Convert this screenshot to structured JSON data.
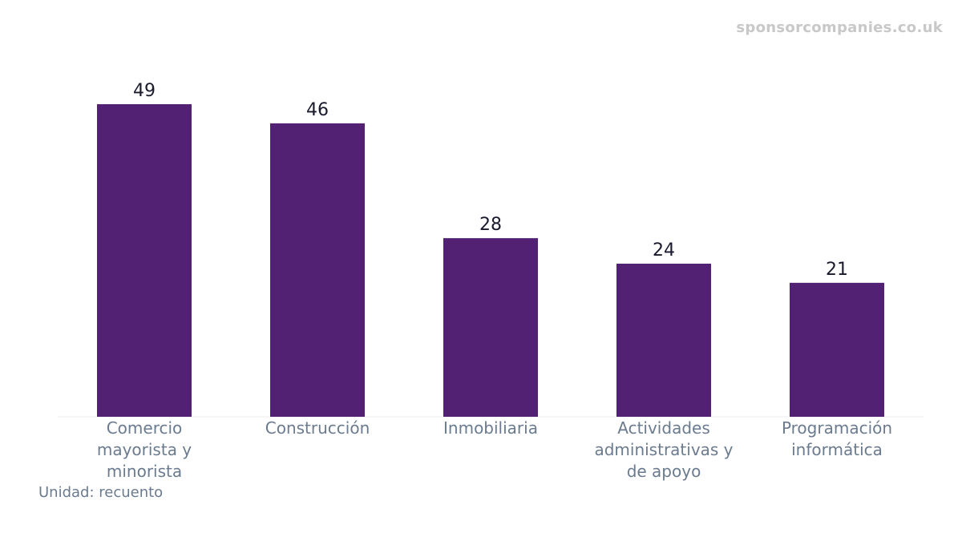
{
  "watermark": "sponsorcompanies.co.uk",
  "unit_note": "Unidad: recuento",
  "colors": {
    "bar": "#522173",
    "axis": "#eeeeee"
  },
  "chart_data": {
    "type": "bar",
    "categories": [
      [
        "Comercio",
        "mayorista y",
        "minorista"
      ],
      [
        "Construcción"
      ],
      [
        "Inmobiliaria"
      ],
      [
        "Actividades",
        "administrativas y",
        "de apoyo"
      ],
      [
        "Programación",
        "informática"
      ]
    ],
    "values": [
      49,
      46,
      28,
      24,
      21
    ],
    "ylim": [
      0,
      49
    ],
    "grid": false,
    "legend": "none"
  }
}
